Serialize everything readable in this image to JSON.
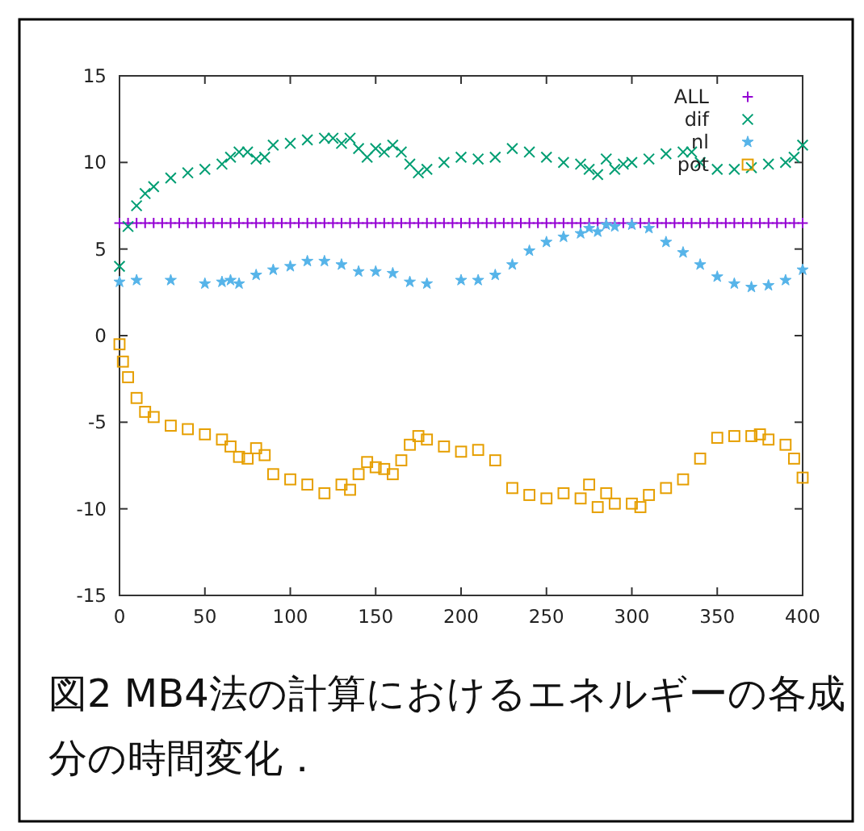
{
  "chart_data": {
    "type": "scatter",
    "xlim": [
      0,
      400
    ],
    "ylim": [
      -15,
      15
    ],
    "xticks": [
      0,
      50,
      100,
      150,
      200,
      250,
      300,
      350,
      400
    ],
    "yticks": [
      -15,
      -10,
      -5,
      0,
      5,
      10,
      15
    ],
    "grid": false,
    "legend": "top right",
    "annotations": [
      "図2 MB4法の計算におけるエネルギーの各成分の時間変化．"
    ],
    "series": [
      {
        "name": "ALL",
        "color": "#9400d3",
        "marker": "plus",
        "x": [
          0,
          5,
          10,
          15,
          20,
          25,
          30,
          35,
          40,
          45,
          50,
          55,
          60,
          65,
          70,
          75,
          80,
          85,
          90,
          95,
          100,
          105,
          110,
          115,
          120,
          125,
          130,
          135,
          140,
          145,
          150,
          155,
          160,
          165,
          170,
          175,
          180,
          185,
          190,
          195,
          200,
          205,
          210,
          215,
          220,
          225,
          230,
          235,
          240,
          245,
          250,
          255,
          260,
          265,
          270,
          275,
          280,
          285,
          290,
          295,
          300,
          305,
          310,
          315,
          320,
          325,
          330,
          335,
          340,
          345,
          350,
          355,
          360,
          365,
          370,
          375,
          380,
          385,
          390,
          395,
          400
        ],
        "values": [
          6.5,
          6.5,
          6.5,
          6.5,
          6.5,
          6.5,
          6.5,
          6.5,
          6.5,
          6.5,
          6.5,
          6.5,
          6.5,
          6.5,
          6.5,
          6.5,
          6.5,
          6.5,
          6.5,
          6.5,
          6.5,
          6.5,
          6.5,
          6.5,
          6.5,
          6.5,
          6.5,
          6.5,
          6.5,
          6.5,
          6.5,
          6.5,
          6.5,
          6.5,
          6.5,
          6.5,
          6.5,
          6.5,
          6.5,
          6.5,
          6.5,
          6.5,
          6.5,
          6.5,
          6.5,
          6.5,
          6.5,
          6.5,
          6.5,
          6.5,
          6.5,
          6.5,
          6.5,
          6.5,
          6.5,
          6.5,
          6.5,
          6.5,
          6.5,
          6.5,
          6.5,
          6.5,
          6.5,
          6.5,
          6.5,
          6.5,
          6.5,
          6.5,
          6.5,
          6.5,
          6.5,
          6.5,
          6.5,
          6.5,
          6.5,
          6.5,
          6.5,
          6.5,
          6.5,
          6.5,
          6.5
        ]
      },
      {
        "name": "dif",
        "color": "#009e73",
        "marker": "cross",
        "x": [
          0,
          5,
          10,
          15,
          20,
          30,
          40,
          50,
          60,
          65,
          70,
          75,
          80,
          85,
          90,
          100,
          110,
          120,
          125,
          130,
          135,
          140,
          145,
          150,
          155,
          160,
          165,
          170,
          175,
          180,
          190,
          200,
          210,
          220,
          230,
          240,
          250,
          260,
          270,
          275,
          280,
          285,
          290,
          295,
          300,
          310,
          320,
          330,
          335,
          340,
          350,
          360,
          370,
          380,
          390,
          395,
          400
        ],
        "values": [
          4.0,
          6.3,
          7.5,
          8.2,
          8.6,
          9.1,
          9.4,
          9.6,
          9.9,
          10.3,
          10.6,
          10.6,
          10.2,
          10.3,
          11.0,
          11.1,
          11.3,
          11.4,
          11.4,
          11.1,
          11.4,
          10.8,
          10.3,
          10.8,
          10.6,
          11.0,
          10.6,
          9.9,
          9.4,
          9.6,
          10.0,
          10.3,
          10.2,
          10.3,
          10.8,
          10.6,
          10.3,
          10.0,
          9.9,
          9.6,
          9.3,
          10.2,
          9.6,
          9.9,
          10.0,
          10.2,
          10.5,
          10.6,
          10.6,
          10.0,
          9.6,
          9.6,
          9.7,
          9.9,
          10.0,
          10.3,
          11.0
        ]
      },
      {
        "name": "nl",
        "color": "#56b4e9",
        "marker": "star",
        "x": [
          0,
          10,
          30,
          50,
          60,
          65,
          70,
          80,
          90,
          100,
          110,
          120,
          130,
          140,
          150,
          160,
          170,
          180,
          200,
          210,
          220,
          230,
          240,
          250,
          260,
          270,
          275,
          280,
          285,
          290,
          300,
          310,
          320,
          330,
          340,
          350,
          360,
          370,
          380,
          390,
          400
        ],
        "values": [
          3.1,
          3.2,
          3.2,
          3.0,
          3.1,
          3.2,
          3.0,
          3.5,
          3.8,
          4.0,
          4.3,
          4.3,
          4.1,
          3.7,
          3.7,
          3.6,
          3.1,
          3.0,
          3.2,
          3.2,
          3.5,
          4.1,
          4.9,
          5.4,
          5.7,
          5.9,
          6.2,
          6.0,
          6.4,
          6.3,
          6.4,
          6.2,
          5.4,
          4.8,
          4.1,
          3.4,
          3.0,
          2.8,
          2.9,
          3.2,
          3.8
        ]
      },
      {
        "name": "pot",
        "color": "#e69f00",
        "marker": "square",
        "x": [
          0,
          2,
          5,
          10,
          15,
          20,
          30,
          40,
          50,
          60,
          65,
          70,
          75,
          80,
          85,
          90,
          100,
          110,
          120,
          130,
          135,
          140,
          145,
          150,
          155,
          160,
          165,
          170,
          175,
          180,
          190,
          200,
          210,
          220,
          230,
          240,
          250,
          260,
          270,
          275,
          280,
          285,
          290,
          300,
          305,
          310,
          320,
          330,
          340,
          350,
          360,
          370,
          375,
          380,
          390,
          395,
          400
        ],
        "values": [
          -0.5,
          -1.5,
          -2.4,
          -3.6,
          -4.4,
          -4.7,
          -5.2,
          -5.4,
          -5.7,
          -6.0,
          -6.4,
          -7.0,
          -7.1,
          -6.5,
          -6.9,
          -8.0,
          -8.3,
          -8.6,
          -9.1,
          -8.6,
          -8.9,
          -8.0,
          -7.3,
          -7.6,
          -7.7,
          -8.0,
          -7.2,
          -6.3,
          -5.8,
          -6.0,
          -6.4,
          -6.7,
          -6.6,
          -7.2,
          -8.8,
          -9.2,
          -9.4,
          -9.1,
          -9.4,
          -8.6,
          -9.9,
          -9.1,
          -9.7,
          -9.7,
          -9.9,
          -9.2,
          -8.8,
          -8.3,
          -7.1,
          -5.9,
          -5.8,
          -5.8,
          -5.7,
          -6.0,
          -6.3,
          -7.1,
          -8.2
        ]
      }
    ]
  }
}
